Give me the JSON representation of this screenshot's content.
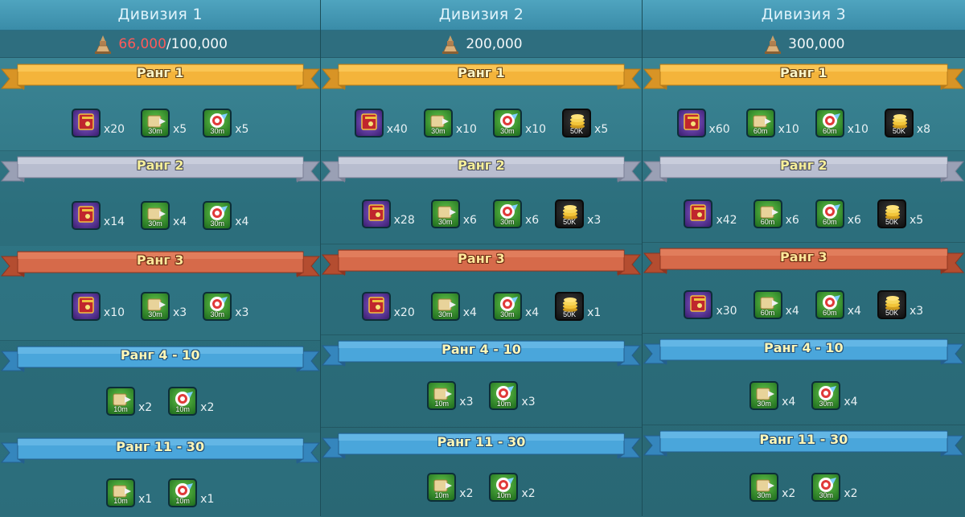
{
  "colors": {
    "gold": "#f3b13a",
    "silver": "#b7bccd",
    "bronze": "#d4684a",
    "blue": "#4aa3d8",
    "current_points": "#ff5a5a"
  },
  "divisions": [
    {
      "title": "Дивизия 1",
      "req_current": "66,000",
      "req_total": "/100,000",
      "ranks": [
        {
          "label": "Ранг 1",
          "style": "gold",
          "items": [
            {
              "icon": "book-icon",
              "kind": "book",
              "tag": "",
              "qty": "x20"
            },
            {
              "icon": "speedup-icon",
              "kind": "speed",
              "tag": "30m",
              "qty": "x5"
            },
            {
              "icon": "research-speedup-icon",
              "kind": "speed",
              "tag": "30m",
              "qty": "x5"
            }
          ]
        },
        {
          "label": "Ранг 2",
          "style": "silver",
          "items": [
            {
              "icon": "book-icon",
              "kind": "book",
              "tag": "",
              "qty": "x14"
            },
            {
              "icon": "speedup-icon",
              "kind": "speed",
              "tag": "30m",
              "qty": "x4"
            },
            {
              "icon": "research-speedup-icon",
              "kind": "speed",
              "tag": "30m",
              "qty": "x4"
            }
          ]
        },
        {
          "label": "Ранг 3",
          "style": "bronze",
          "items": [
            {
              "icon": "book-icon",
              "kind": "book",
              "tag": "",
              "qty": "x10"
            },
            {
              "icon": "speedup-icon",
              "kind": "speed",
              "tag": "30m",
              "qty": "x3"
            },
            {
              "icon": "research-speedup-icon",
              "kind": "speed",
              "tag": "30m",
              "qty": "x3"
            }
          ]
        },
        {
          "label": "Ранг 4 - 10",
          "style": "blue",
          "items": [
            {
              "icon": "speedup-icon",
              "kind": "speed",
              "tag": "10m",
              "qty": "x2"
            },
            {
              "icon": "research-speedup-icon",
              "kind": "speed",
              "tag": "10m",
              "qty": "x2"
            }
          ]
        },
        {
          "label": "Ранг 11 - 30",
          "style": "blue",
          "items": [
            {
              "icon": "speedup-icon",
              "kind": "speed",
              "tag": "10m",
              "qty": "x1"
            },
            {
              "icon": "research-speedup-icon",
              "kind": "speed",
              "tag": "10m",
              "qty": "x1"
            }
          ]
        }
      ]
    },
    {
      "title": "Дивизия 2",
      "req_current": "",
      "req_total": "200,000",
      "ranks": [
        {
          "label": "Ранг 1",
          "style": "gold",
          "items": [
            {
              "icon": "book-icon",
              "kind": "book",
              "tag": "",
              "qty": "x40"
            },
            {
              "icon": "speedup-icon",
              "kind": "speed",
              "tag": "30m",
              "qty": "x10"
            },
            {
              "icon": "research-speedup-icon",
              "kind": "speed",
              "tag": "30m",
              "qty": "x10"
            },
            {
              "icon": "gold-coins-icon",
              "kind": "res",
              "tag": "50K",
              "qty": "x5"
            }
          ]
        },
        {
          "label": "Ранг 2",
          "style": "silver",
          "items": [
            {
              "icon": "book-icon",
              "kind": "book",
              "tag": "",
              "qty": "x28"
            },
            {
              "icon": "speedup-icon",
              "kind": "speed",
              "tag": "30m",
              "qty": "x6"
            },
            {
              "icon": "research-speedup-icon",
              "kind": "speed",
              "tag": "30m",
              "qty": "x6"
            },
            {
              "icon": "gold-coins-icon",
              "kind": "res",
              "tag": "50K",
              "qty": "x3"
            }
          ]
        },
        {
          "label": "Ранг 3",
          "style": "bronze",
          "items": [
            {
              "icon": "book-icon",
              "kind": "book",
              "tag": "",
              "qty": "x20"
            },
            {
              "icon": "speedup-icon",
              "kind": "speed",
              "tag": "30m",
              "qty": "x4"
            },
            {
              "icon": "research-speedup-icon",
              "kind": "speed",
              "tag": "30m",
              "qty": "x4"
            },
            {
              "icon": "gold-coins-icon",
              "kind": "res",
              "tag": "50K",
              "qty": "x1"
            }
          ]
        },
        {
          "label": "Ранг 4 - 10",
          "style": "blue",
          "items": [
            {
              "icon": "speedup-icon",
              "kind": "speed",
              "tag": "10m",
              "qty": "x3"
            },
            {
              "icon": "research-speedup-icon",
              "kind": "speed",
              "tag": "10m",
              "qty": "x3"
            }
          ]
        },
        {
          "label": "Ранг 11 - 30",
          "style": "blue",
          "items": [
            {
              "icon": "speedup-icon",
              "kind": "speed",
              "tag": "10m",
              "qty": "x2"
            },
            {
              "icon": "research-speedup-icon",
              "kind": "speed",
              "tag": "10m",
              "qty": "x2"
            }
          ]
        }
      ]
    },
    {
      "title": "Дивизия 3",
      "req_current": "",
      "req_total": "300,000",
      "ranks": [
        {
          "label": "Ранг 1",
          "style": "gold",
          "items": [
            {
              "icon": "book-icon",
              "kind": "book",
              "tag": "",
              "qty": "x60"
            },
            {
              "icon": "speedup-icon",
              "kind": "speed",
              "tag": "60m",
              "qty": "x10"
            },
            {
              "icon": "research-speedup-icon",
              "kind": "speed",
              "tag": "60m",
              "qty": "x10"
            },
            {
              "icon": "gold-coins-icon",
              "kind": "res",
              "tag": "50K",
              "qty": "x8"
            }
          ]
        },
        {
          "label": "Ранг 2",
          "style": "silver",
          "items": [
            {
              "icon": "book-icon",
              "kind": "book",
              "tag": "",
              "qty": "x42"
            },
            {
              "icon": "speedup-icon",
              "kind": "speed",
              "tag": "60m",
              "qty": "x6"
            },
            {
              "icon": "research-speedup-icon",
              "kind": "speed",
              "tag": "60m",
              "qty": "x6"
            },
            {
              "icon": "gold-coins-icon",
              "kind": "res",
              "tag": "50K",
              "qty": "x5"
            }
          ]
        },
        {
          "label": "Ранг 3",
          "style": "bronze",
          "items": [
            {
              "icon": "book-icon",
              "kind": "book",
              "tag": "",
              "qty": "x30"
            },
            {
              "icon": "speedup-icon",
              "kind": "speed",
              "tag": "60m",
              "qty": "x4"
            },
            {
              "icon": "research-speedup-icon",
              "kind": "speed",
              "tag": "60m",
              "qty": "x4"
            },
            {
              "icon": "gold-coins-icon",
              "kind": "res",
              "tag": "50K",
              "qty": "x3"
            }
          ]
        },
        {
          "label": "Ранг 4 - 10",
          "style": "blue",
          "items": [
            {
              "icon": "speedup-icon",
              "kind": "speed",
              "tag": "30m",
              "qty": "x4"
            },
            {
              "icon": "research-speedup-icon",
              "kind": "speed",
              "tag": "30m",
              "qty": "x4"
            }
          ]
        },
        {
          "label": "Ранг 11 - 30",
          "style": "blue",
          "items": [
            {
              "icon": "speedup-icon",
              "kind": "speed",
              "tag": "30m",
              "qty": "x2"
            },
            {
              "icon": "research-speedup-icon",
              "kind": "speed",
              "tag": "30m",
              "qty": "x2"
            }
          ]
        }
      ]
    }
  ]
}
